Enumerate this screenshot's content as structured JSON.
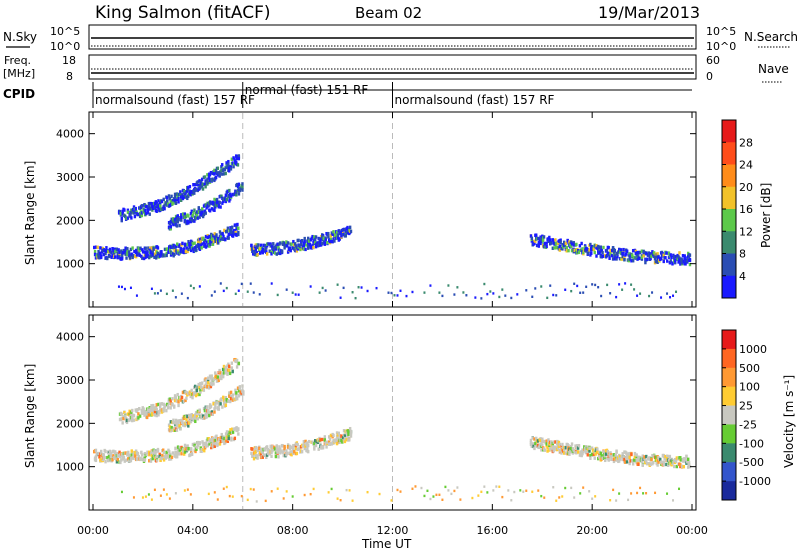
{
  "header": {
    "station": "King Salmon (fitACF)",
    "beam": "Beam 02",
    "date": "19/Mar/2013"
  },
  "top_panels": {
    "nsky_label": "N.Sky",
    "nsearch_label": "N.Search",
    "nsky_ticks": [
      "10^5",
      "10^0"
    ],
    "nsearch_ticks": [
      "10^5",
      "10^0"
    ],
    "freq_label": "Freq.",
    "freq_unit": "[MHz]",
    "freq_ticks": [
      "18",
      "8"
    ],
    "nave_label": "Nave",
    "nave_ticks": [
      "60",
      "0"
    ],
    "cpid_label": "CPID",
    "cpid_segments": [
      {
        "label": "normalsound (fast) 157 RF",
        "start": 0,
        "end": 6
      },
      {
        "label": "normal (fast) 151 RF",
        "start": 6,
        "end": 12
      },
      {
        "label": "normalsound (fast) 157 RF",
        "start": 12,
        "end": 24
      }
    ]
  },
  "x_axis": {
    "title": "Time UT",
    "ticks": [
      "00:00",
      "04:00",
      "08:00",
      "12:00",
      "16:00",
      "20:00",
      "00:00"
    ]
  },
  "y_axis": {
    "title": "Slant Range [km]",
    "ticks": [
      "1000",
      "2000",
      "3000",
      "4000"
    ]
  },
  "colorbars": {
    "power": {
      "label": "Power [dB]",
      "ticks": [
        "4",
        "8",
        "12",
        "16",
        "20",
        "24",
        "28"
      ],
      "colors": [
        "#1a1aff",
        "#2a4db3",
        "#3a8a6e",
        "#5cc94a",
        "#f2c22a",
        "#ff8c1a",
        "#ff4d1a",
        "#e61a1a"
      ]
    },
    "velocity": {
      "label": "Velocity [m s⁻¹]",
      "ticks": [
        "1000",
        "500",
        "100",
        "25",
        "-25",
        "-100",
        "-500",
        "-1000"
      ],
      "colors": [
        "#1a2a9c",
        "#3355cc",
        "#3a8a6e",
        "#66cc33",
        "#c8c8c0",
        "#ffcc33",
        "#ff9933",
        "#ff6622",
        "#e61a1a"
      ]
    }
  },
  "chart_data": [
    {
      "type": "heatmap",
      "title": "Power",
      "xlabel": "Time UT",
      "ylabel": "Slant Range [km]",
      "xlim": [
        0,
        24
      ],
      "ylim": [
        0,
        4500
      ],
      "colorbar_label": "Power [dB]",
      "bands": [
        {
          "x": [
            0,
            1,
            2,
            3,
            4,
            5,
            5.8
          ],
          "y": [
            1250,
            1220,
            1230,
            1280,
            1400,
            1600,
            1800
          ],
          "level": 2
        },
        {
          "x": [
            6.3,
            7.5,
            8.5,
            9.5,
            10.3
          ],
          "y": [
            1300,
            1350,
            1450,
            1600,
            1750
          ],
          "level": 2
        },
        {
          "x": [
            17.5,
            19,
            20.5,
            22,
            23.9
          ],
          "y": [
            1550,
            1400,
            1250,
            1150,
            1100
          ],
          "level": 2
        },
        {
          "x": [
            1,
            2.5,
            4,
            5,
            5.8
          ],
          "y": [
            2100,
            2300,
            2700,
            3100,
            3400
          ],
          "level": 1
        },
        {
          "x": [
            3,
            4,
            5,
            6
          ],
          "y": [
            1900,
            2100,
            2400,
            2800
          ],
          "level": 1
        }
      ]
    },
    {
      "type": "heatmap",
      "title": "Velocity",
      "xlabel": "Time UT",
      "ylabel": "Slant Range [km]",
      "xlim": [
        0,
        24
      ],
      "ylim": [
        0,
        4500
      ],
      "colorbar_label": "Velocity [m s⁻¹]",
      "bands": [
        {
          "x": [
            0,
            1,
            2,
            3,
            4,
            5,
            5.8
          ],
          "y": [
            1250,
            1220,
            1230,
            1280,
            1400,
            1600,
            1800
          ],
          "level": 4
        },
        {
          "x": [
            6.3,
            7.5,
            8.5,
            9.5,
            10.3
          ],
          "y": [
            1300,
            1350,
            1450,
            1600,
            1750
          ],
          "level": 5
        },
        {
          "x": [
            17.5,
            19,
            20.5,
            22,
            23.9
          ],
          "y": [
            1550,
            1400,
            1250,
            1150,
            1100
          ],
          "level": 4
        },
        {
          "x": [
            1,
            2.5,
            4,
            5,
            5.8
          ],
          "y": [
            2100,
            2300,
            2700,
            3100,
            3400
          ],
          "level": 4
        },
        {
          "x": [
            3,
            4,
            5,
            6
          ],
          "y": [
            1900,
            2100,
            2400,
            2800
          ],
          "level": 5
        }
      ]
    }
  ]
}
